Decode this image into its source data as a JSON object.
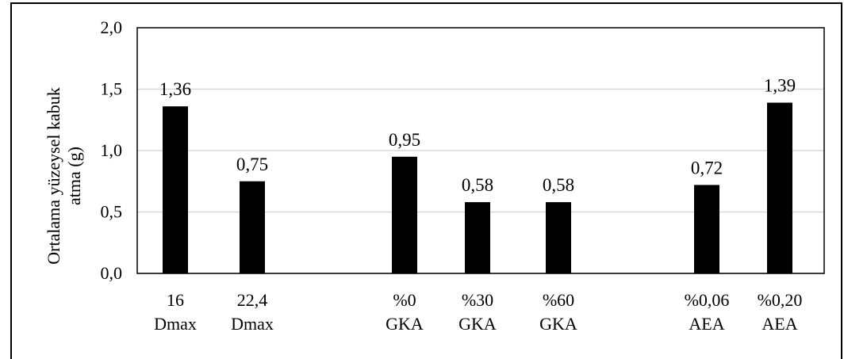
{
  "chart_data": {
    "type": "bar",
    "title": "",
    "xlabel": "",
    "ylabel_lines": [
      "Ortalama yüzeysel kabuk",
      "atma (g)"
    ],
    "ylim": [
      0,
      2.0
    ],
    "yticks": [
      "0,0",
      "0,5",
      "1,0",
      "1,5",
      "2,0"
    ],
    "grid": true,
    "legend": "none",
    "bar_color": "#000000",
    "categories": [
      [
        "16",
        "Dmax"
      ],
      [
        "22,4",
        "Dmax"
      ],
      [
        "%0",
        "GKA"
      ],
      [
        "%30",
        "GKA"
      ],
      [
        "%60",
        "GKA"
      ],
      [
        "%0,06",
        "AEA"
      ],
      [
        "%0,20",
        "AEA"
      ]
    ],
    "values": [
      1.36,
      0.75,
      0.95,
      0.58,
      0.58,
      0.72,
      1.39
    ],
    "data_labels": [
      "1,36",
      "0,75",
      "0,95",
      "0,58",
      "0,58",
      "0,72",
      "1,39"
    ]
  }
}
